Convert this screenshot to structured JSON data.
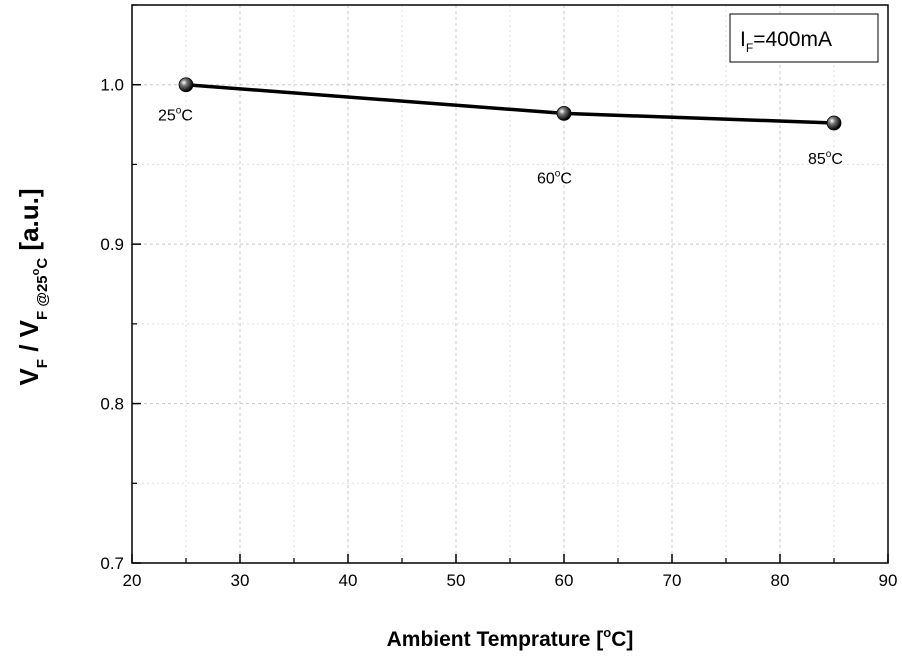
{
  "chart_data": {
    "type": "line",
    "x": [
      25,
      60,
      85
    ],
    "series": [
      {
        "values": [
          1.0,
          0.982,
          0.976
        ],
        "point_labels": [
          "25",
          "60",
          "85"
        ]
      }
    ],
    "point_label_unit": "C",
    "xlim": [
      20,
      90
    ],
    "ylim": [
      0.7,
      1.05
    ],
    "xticks": [
      20,
      30,
      40,
      50,
      60,
      70,
      80,
      90
    ],
    "yticks": [
      0.7,
      0.8,
      0.9,
      1.0
    ],
    "ytick_labels": [
      "0.7",
      "0.8",
      "0.9",
      "1.0"
    ],
    "xlabel": {
      "main": "Ambient Temprature [",
      "unit": "C]"
    },
    "ylabel": {
      "v1": "V",
      "sub1": "F",
      "mid": " / V",
      "sub2": "F @25",
      "sub2_unit": "C",
      "tail": " [a.u.]"
    },
    "legend": {
      "main": "I",
      "sub": "F",
      "rest": "=400mA",
      "placement": "top-right"
    },
    "grid": true,
    "line_color": "#000000",
    "marker": "sphere"
  }
}
